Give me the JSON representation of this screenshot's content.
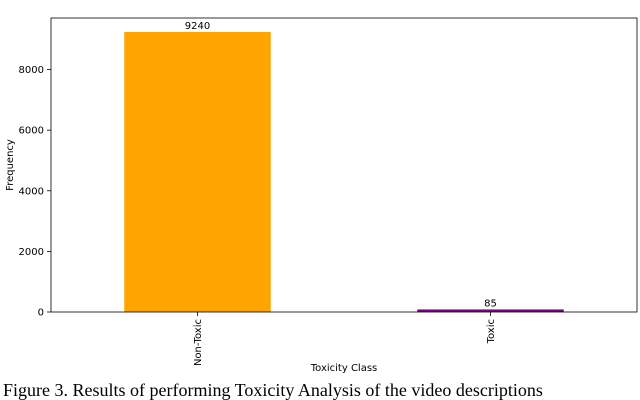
{
  "chart_data": {
    "type": "bar",
    "categories": [
      "Non-Toxic",
      "Toxic"
    ],
    "values": [
      9240,
      85
    ],
    "colors": [
      "#ffa500",
      "#800080"
    ],
    "ylim": [
      0,
      9702
    ],
    "yticks": [
      0,
      2000,
      4000,
      6000,
      8000
    ],
    "ylabel": "Frequency",
    "xlabel": "Toxicity Class",
    "grid": false
  },
  "caption": "Figure 3. Results of performing Toxicity Analysis of the video descriptions"
}
